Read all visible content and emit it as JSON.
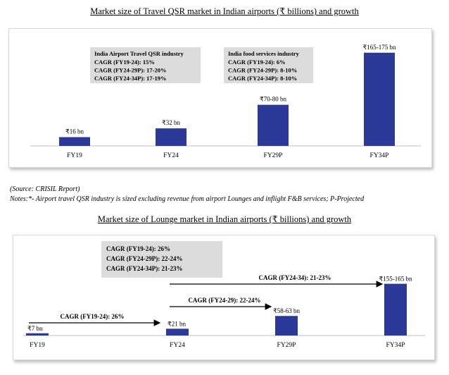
{
  "chart_data": [
    {
      "type": "bar",
      "title": "Market size of Travel QSR market in Indian airports (₹ billions) and growth",
      "categories": [
        "FY19",
        "FY24",
        "FY29P",
        "FY34P"
      ],
      "values": [
        16,
        32,
        75,
        170
      ],
      "data_labels": [
        "₹16 bn",
        "₹32 bn",
        "₹70-80 bn",
        "₹165-175 bn"
      ],
      "ylim": [
        0,
        180
      ],
      "color": "#2b3a98",
      "annotation_boxes": [
        {
          "title": "India Airport Travel QSR industry",
          "lines": [
            "CAGR (FY19-24): 15%",
            "CAGR (FY24-29P): 17-20%",
            "CAGR (FY24-34P): 17-19%"
          ]
        },
        {
          "title": "India food services industry",
          "lines": [
            "CAGR (FY19-24): 6%",
            "CAGR (FY24-29P): 8-10%",
            "CAGR (FY24-34P): 8-10%"
          ]
        }
      ]
    },
    {
      "type": "bar",
      "title": "Market size of Lounge market in Indian airports (₹ billions) and growth",
      "categories": [
        "FY19",
        "FY24",
        "FY29P",
        "FY34P"
      ],
      "values": [
        7,
        21,
        60.5,
        160
      ],
      "data_labels": [
        "₹7 bn",
        "₹21 bn",
        "₹58-63 bn",
        "₹155-165 bn"
      ],
      "ylim": [
        0,
        170
      ],
      "color": "#2b3a98",
      "annotation_box": {
        "lines": [
          "CAGR (FY19-24): 26%",
          "CAGR (FY24-29P): 22-24%",
          "CAGR (FY24-34P): 21-23%"
        ]
      },
      "arrows": [
        {
          "label": "CAGR (FY19-24): 26%",
          "from": "FY19",
          "to": "FY24"
        },
        {
          "label": "CAGR (FY24-29): 22-24%",
          "from": "FY24",
          "to": "FY29P"
        },
        {
          "label": "CAGR (FY24-34): 21-23%",
          "from": "FY24",
          "to": "FY34P"
        }
      ]
    }
  ],
  "notes": {
    "source": "(Source: CRISIL Report)",
    "footnote": "Notes:*- Airport travel QSR industry is sized excluding revenue from airport Lounges and inflight F&B services; P-Projected"
  }
}
